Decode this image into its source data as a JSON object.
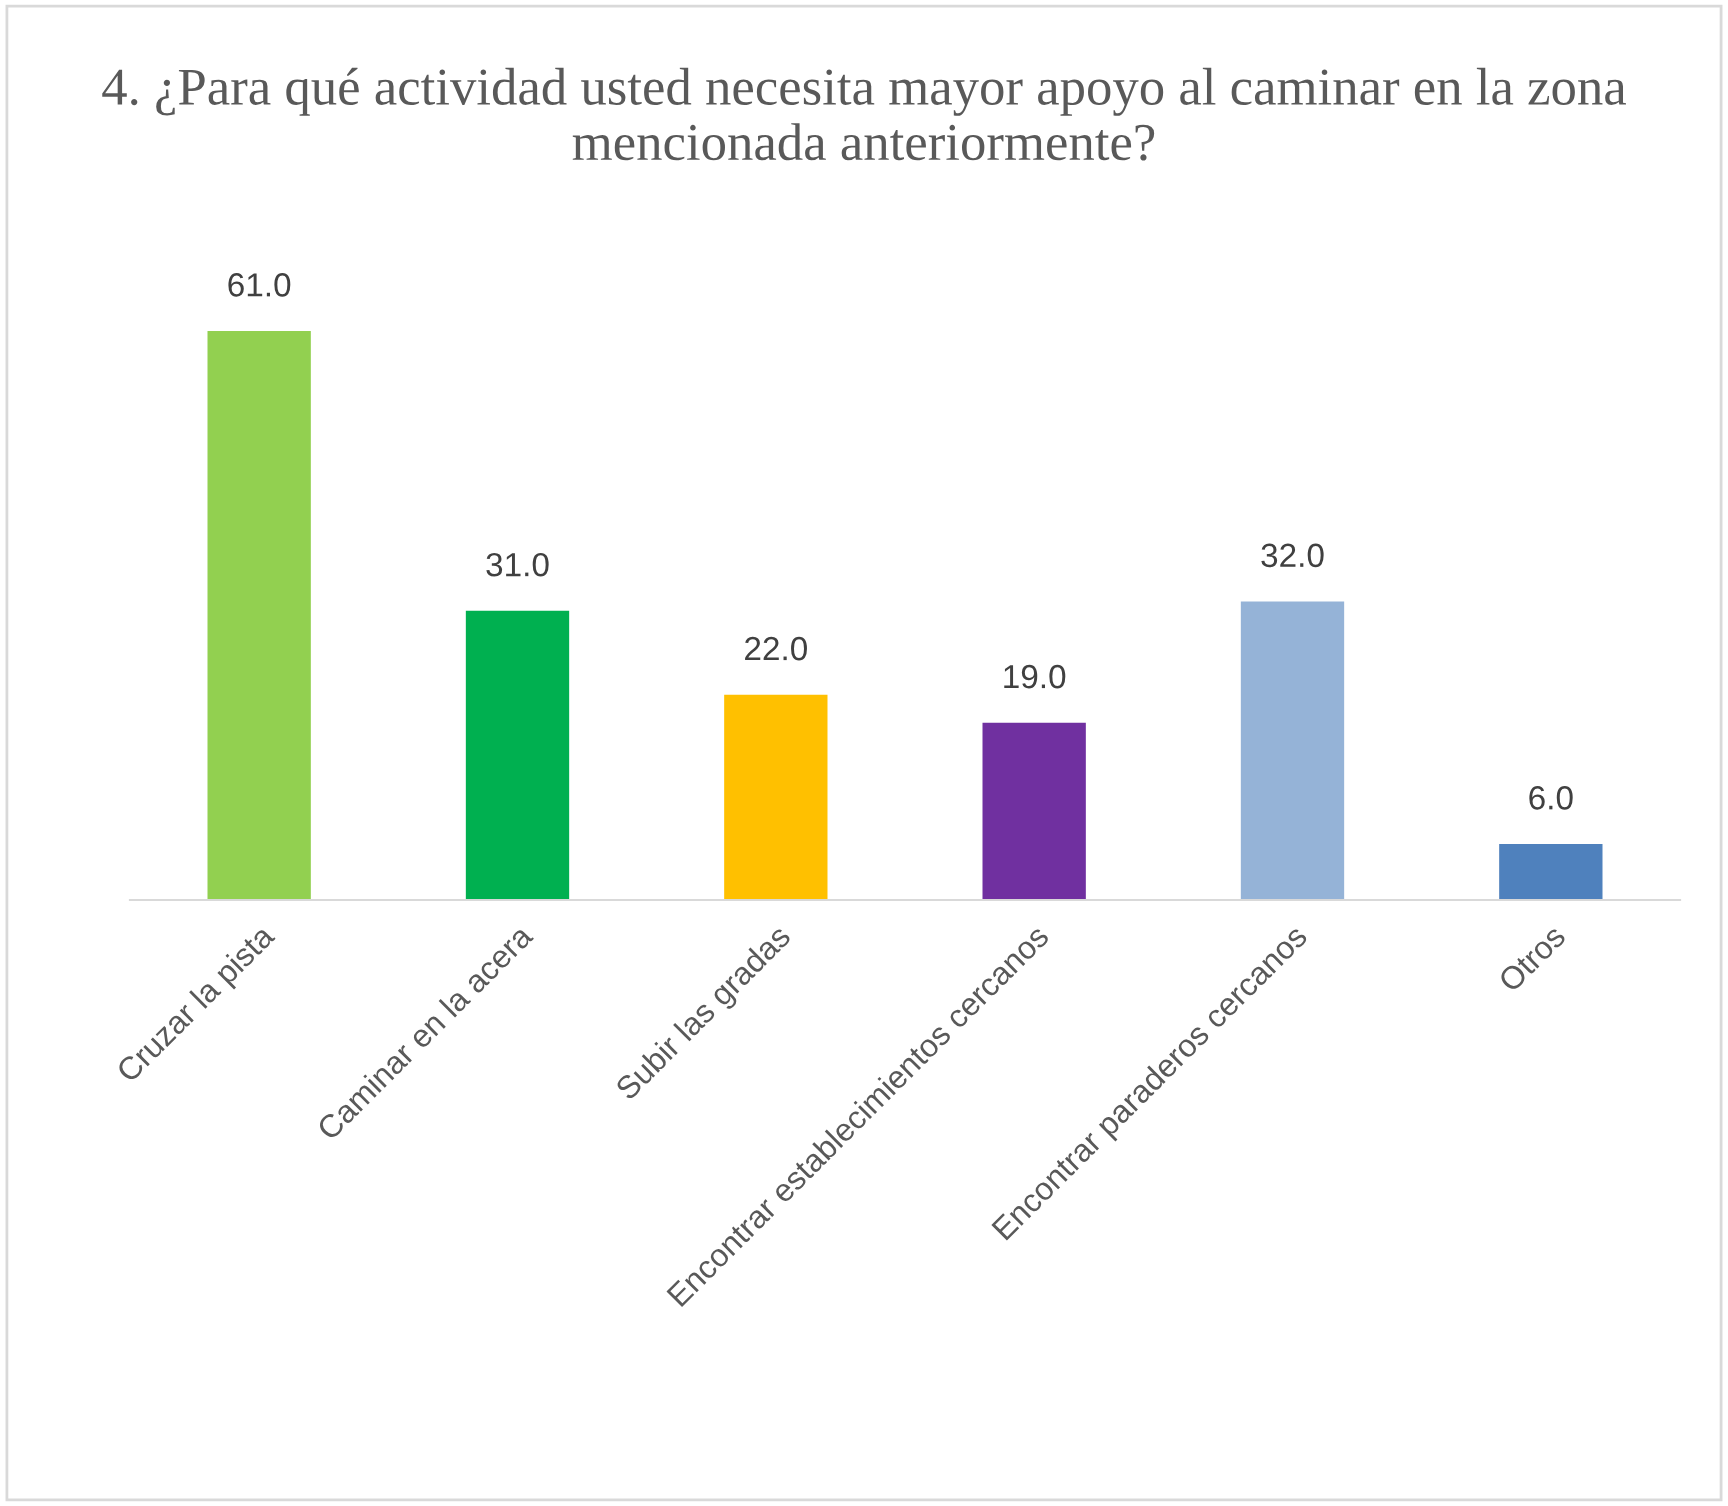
{
  "chart_data": {
    "type": "bar",
    "title": "4. ¿Para qué actividad usted necesita mayor apoyo al caminar en la zona mencionada anteriormente?",
    "categories": [
      "Cruzar la pista",
      "Caminar en la acera",
      "Subir las gradas",
      "Encontrar establecimientos cercanos",
      "Encontrar paraderos cercanos",
      "Otros"
    ],
    "values": [
      61.0,
      31.0,
      22.0,
      19.0,
      32.0,
      6.0
    ],
    "colors": [
      "#92d050",
      "#00b050",
      "#ffc000",
      "#7030a0",
      "#95b3d7",
      "#4f81bd"
    ],
    "value_labels": [
      "61.0",
      "31.0",
      "22.0",
      "19.0",
      "32.0",
      "6.0"
    ],
    "grid": false,
    "legend": false
  }
}
